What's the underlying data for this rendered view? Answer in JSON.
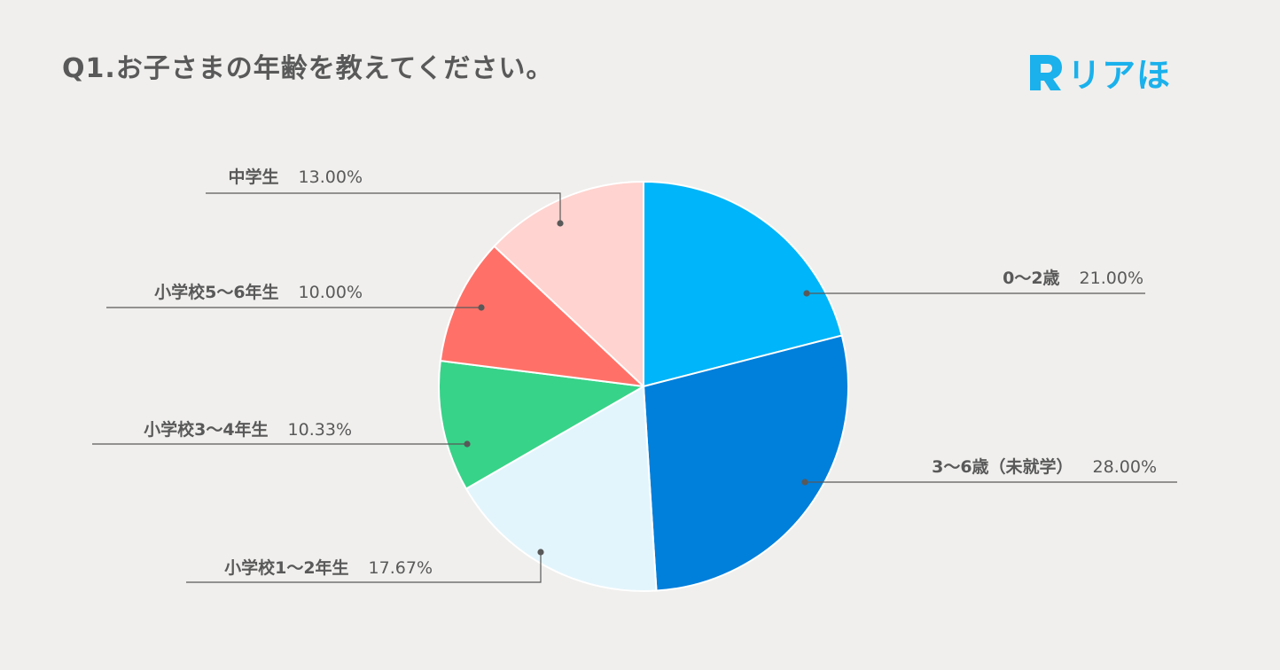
{
  "header": {
    "title": "Q1.お子さまの年齢を教えてください。"
  },
  "logo": {
    "glyph": "R",
    "text": "リアほ",
    "color": "#1ab1ec"
  },
  "chart_data": {
    "type": "pie",
    "title": "Q1.お子さまの年齢を教えてください。",
    "unit": "%",
    "start_angle": "12 o'clock",
    "direction": "clockwise",
    "legend": "none",
    "labels": "outside with leader lines",
    "slices": [
      {
        "label": "0〜2歳",
        "value": 21.0,
        "display": "21.00%",
        "color": "#00b5f9"
      },
      {
        "label": "3〜6歳（未就学）",
        "value": 28.0,
        "display": "28.00%",
        "color": "#007fdb"
      },
      {
        "label": "小学校1〜2年生",
        "value": 17.67,
        "display": "17.67%",
        "color": "#e3f5fc"
      },
      {
        "label": "小学校3〜4年生",
        "value": 10.33,
        "display": "10.33%",
        "color": "#37d389"
      },
      {
        "label": "小学校5〜6年生",
        "value": 10.0,
        "display": "10.00%",
        "color": "#ff7168"
      },
      {
        "label": "中学生",
        "value": 13.0,
        "display": "13.00%",
        "color": "#ffd3cf"
      }
    ]
  }
}
